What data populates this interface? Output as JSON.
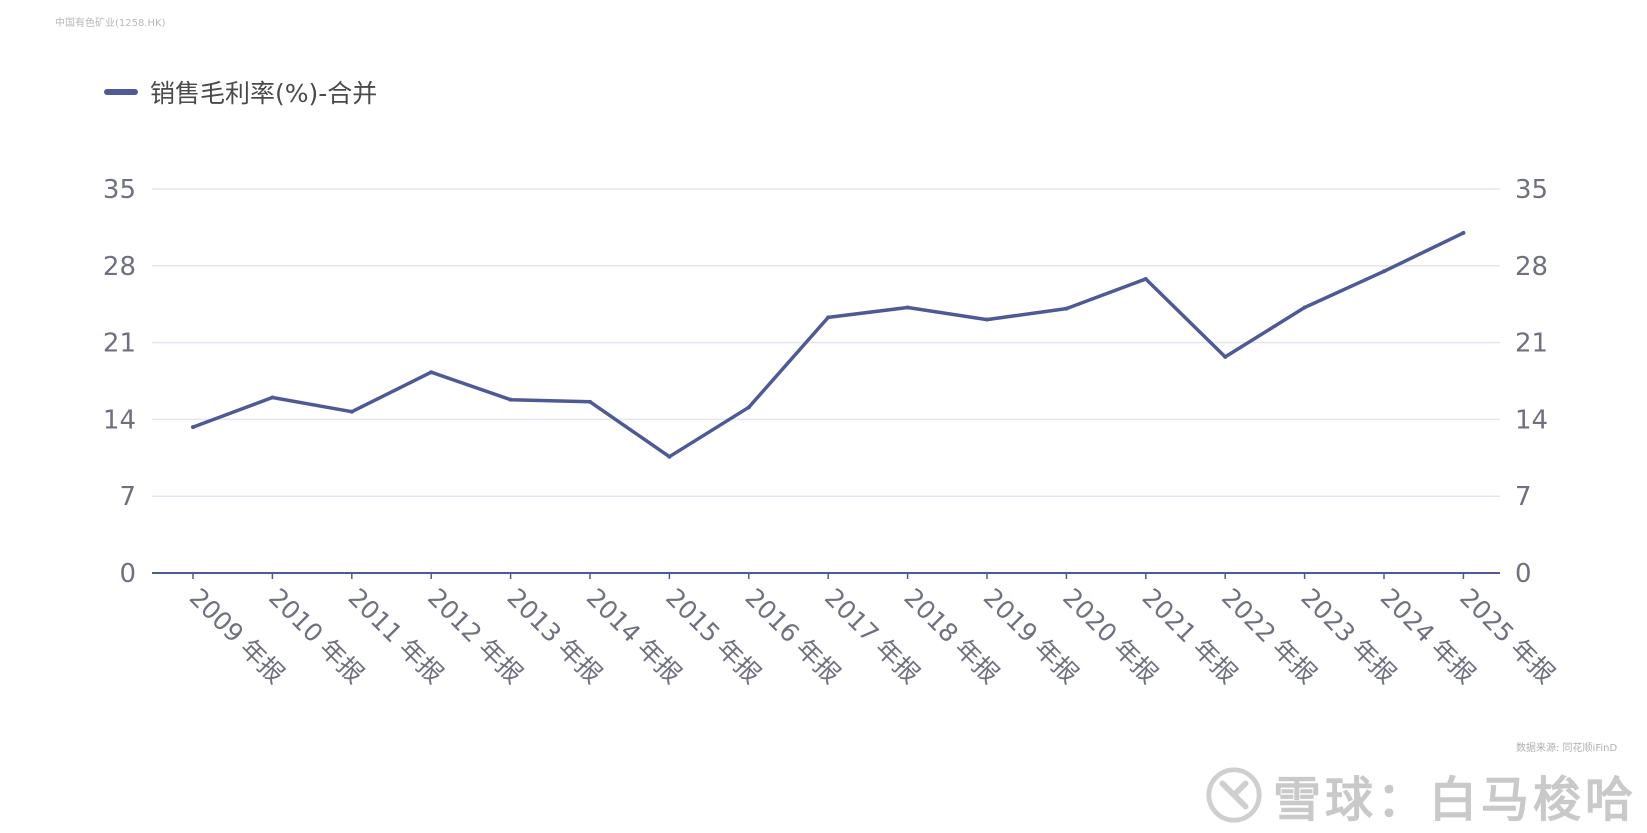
{
  "header": {
    "corner_title": "中国有色矿业(1258.HK)"
  },
  "legend": {
    "label": "销售毛利率(%)-合并"
  },
  "footer": {
    "source": "数据来源: 同花顺iFinD",
    "watermark": "雪球：白马梭哈"
  },
  "colors": {
    "series": "#4e5a96",
    "grid": "#e3e6f2",
    "axis": "#4e5a96",
    "tick_text": "#6f7180"
  },
  "chart_data": {
    "type": "line",
    "title": "",
    "xlabel": "",
    "ylabel": "",
    "ylim": [
      0,
      35
    ],
    "yticks": [
      0,
      7,
      14,
      21,
      28,
      35
    ],
    "grid": true,
    "legend_position": "top-left",
    "dual_y_axis_labels": true,
    "categories": [
      "2009 年报",
      "2010 年报",
      "2011 年报",
      "2012 年报",
      "2013 年报",
      "2014 年报",
      "2015 年报",
      "2016 年报",
      "2017 年报",
      "2018 年报",
      "2019 年报",
      "2020 年报",
      "2021 年报",
      "2022 年报",
      "2023 年报",
      "2024 年报",
      "2025 年报"
    ],
    "series": [
      {
        "name": "销售毛利率(%)-合并",
        "values": [
          13.3,
          16.0,
          14.7,
          18.3,
          15.8,
          15.6,
          10.6,
          15.1,
          23.3,
          24.2,
          23.1,
          24.1,
          26.8,
          19.7,
          24.2,
          27.5,
          31.0
        ]
      }
    ]
  }
}
